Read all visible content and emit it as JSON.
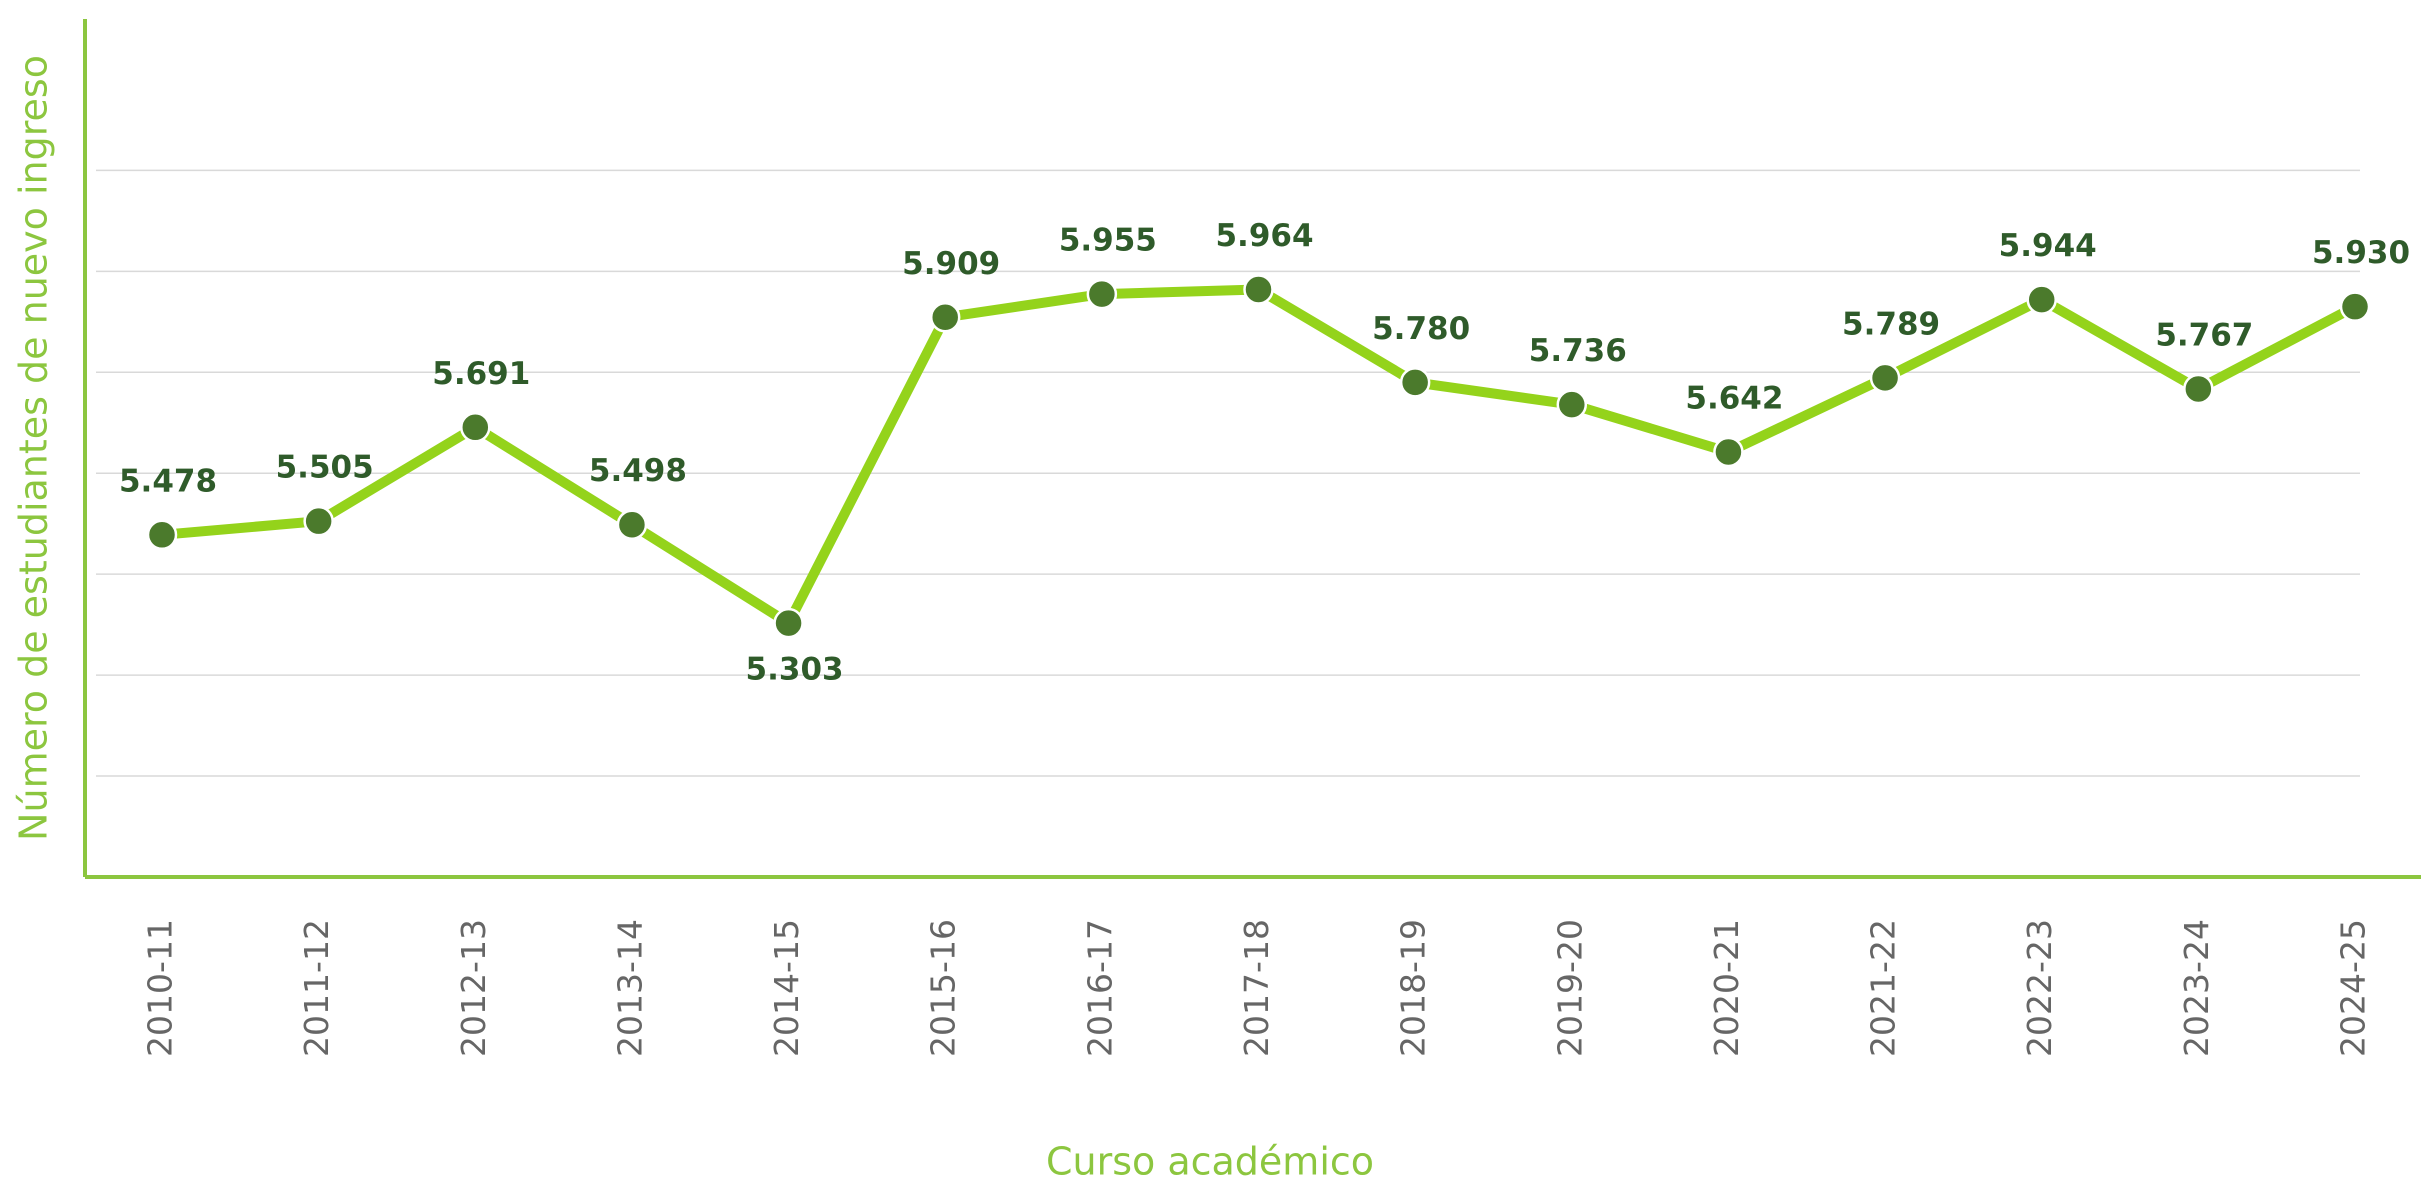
{
  "chart_data": {
    "type": "line",
    "x_label": "Curso académico",
    "y_label": "Número de estudiantes de nuevo ingreso",
    "categories": [
      "2010-11",
      "2011-12",
      "2012-13",
      "2013-14",
      "2014-15",
      "2015-16",
      "2016-17",
      "2017-18",
      "2018-19",
      "2019-20",
      "2020-21",
      "2021-22",
      "2022-23",
      "2023-24",
      "2024-25"
    ],
    "series": [
      {
        "color": "#94d31b",
        "marker_color": "#4b7a2c",
        "values": [
          5478,
          5505,
          5691,
          5498,
          5303,
          5909,
          5955,
          5964,
          5780,
          5736,
          5642,
          5789,
          5944,
          5767,
          5930
        ],
        "value_labels": [
          "5.478",
          "5.505",
          "5.691",
          "5.498",
          "5.303",
          "5.909",
          "5.955",
          "5.964",
          "5.780",
          "5.736",
          "5.642",
          "5.789",
          "5.944",
          "5.767",
          "5.930"
        ]
      }
    ],
    "ylim": [
      4800,
      6500
    ],
    "yticks": [
      5000,
      5200,
      5400,
      5600,
      5800,
      6000,
      6200
    ],
    "grid": true
  }
}
